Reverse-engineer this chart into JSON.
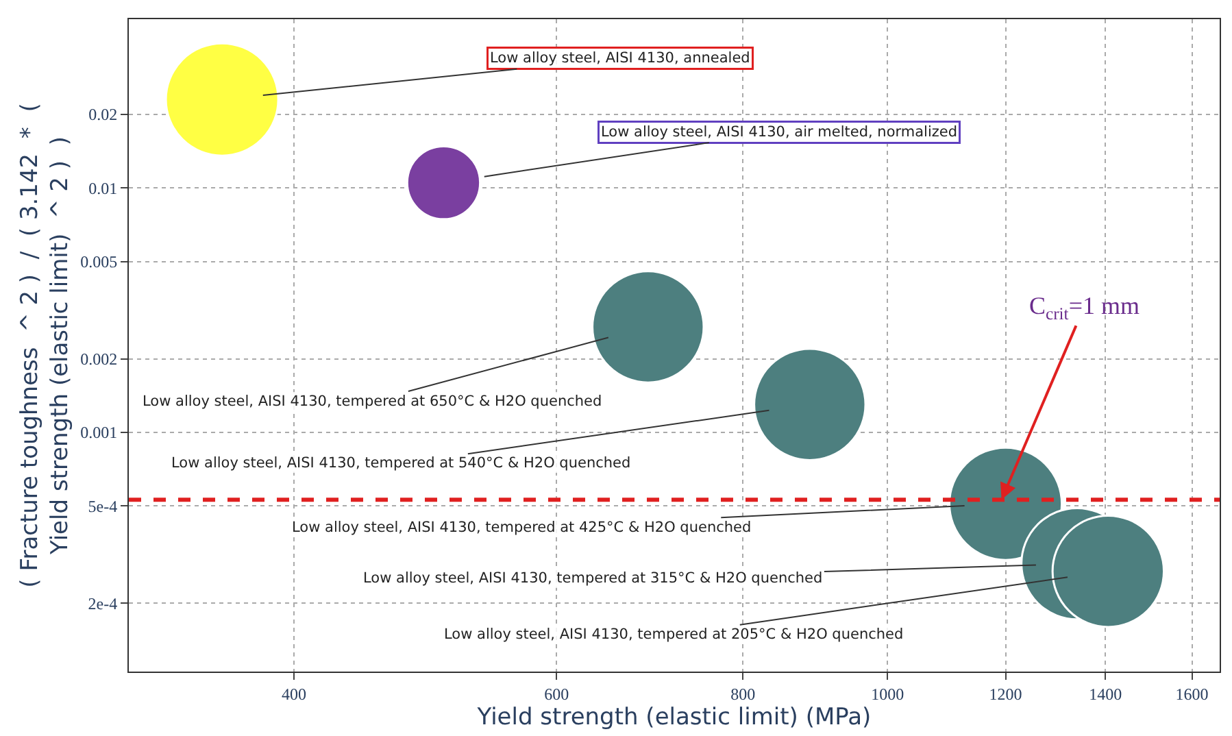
{
  "chart_data": {
    "type": "bubble",
    "sizes": [
      1,
      0.42,
      0.98,
      0.98,
      1,
      0.98,
      0.98
    ],
    "xlabel": "Yield strength (elastic limit) (MPa)",
    "ylabel": "( Fracture toughness  ^ 2 )  /  ( 3.142  *  (\nYield strength (elastic limit)  ^ 2 )  )",
    "x": [
      358,
      504,
      691,
      887,
      1200,
      1340,
      1406
    ],
    "values": [
      0.023,
      0.0105,
      0.0027,
      0.0013,
      0.00051,
      0.00029,
      0.00027
    ],
    "colors": [
      "#ffff44",
      "#7a3fa0",
      "#4d7f7f",
      "#4d7f7f",
      "#4d7f7f",
      "#4d7f7f",
      "#4d7f7f"
    ],
    "annotations": [
      {
        "text": "Low alloy steel, AISI 4130, annealed",
        "x": 358,
        "y": 0.023
      },
      {
        "text": "Low alloy steel, AISI 4130, air melted, normalized",
        "x": 504,
        "y": 0.0105
      },
      {
        "text": "Low alloy steel, AISI 4130, tempered at 650°C & H2O quenched",
        "x": 691,
        "y": 0.0027
      },
      {
        "text": "Low alloy steel, AISI 4130, tempered at 540°C & H2O quenched",
        "x": 887,
        "y": 0.0013
      },
      {
        "text": "Low alloy steel, AISI 4130, tempered at 425°C & H2O quenched",
        "x": 1200,
        "y": 0.00051
      },
      {
        "text": "Low alloy steel, AISI 4130, tempered at 315°C & H2O quenched",
        "x": 1340,
        "y": 0.00029
      },
      {
        "text": "Low alloy steel, AISI 4130, tempered at 205°C & H2O quenched",
        "x": 1406,
        "y": 0.00027
      }
    ],
    "ref_lines": [
      {
        "axis": "y",
        "value": 0.00053,
        "label": "C$_{crit}$=1 mm",
        "color": "#e02020",
        "line_style": "dashed"
      }
    ],
    "log": "xy",
    "xlim": [
      310,
      1670
    ],
    "ylim": [
      0.000105,
      0.049
    ],
    "xticks": [
      400,
      600,
      800,
      1000,
      1200,
      1400,
      1600
    ],
    "yticks": [
      {
        "value": 0.0002,
        "label": "2e-4"
      },
      {
        "value": 0.0005,
        "label": "5e-4"
      },
      0.001,
      0.002,
      0.005,
      0.01,
      0.02
    ],
    "grid": true
  }
}
